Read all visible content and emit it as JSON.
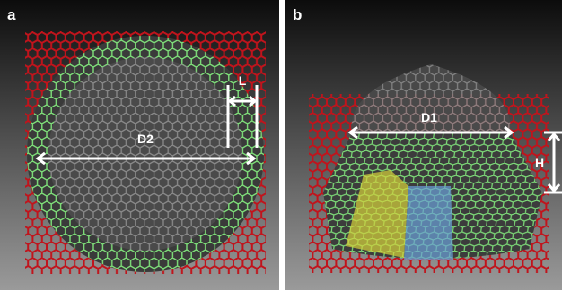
{
  "panels": [
    {
      "label": "a",
      "annotations": [
        "D2",
        "L"
      ]
    },
    {
      "label": "b",
      "annotations": [
        "D1",
        "H"
      ]
    }
  ]
}
